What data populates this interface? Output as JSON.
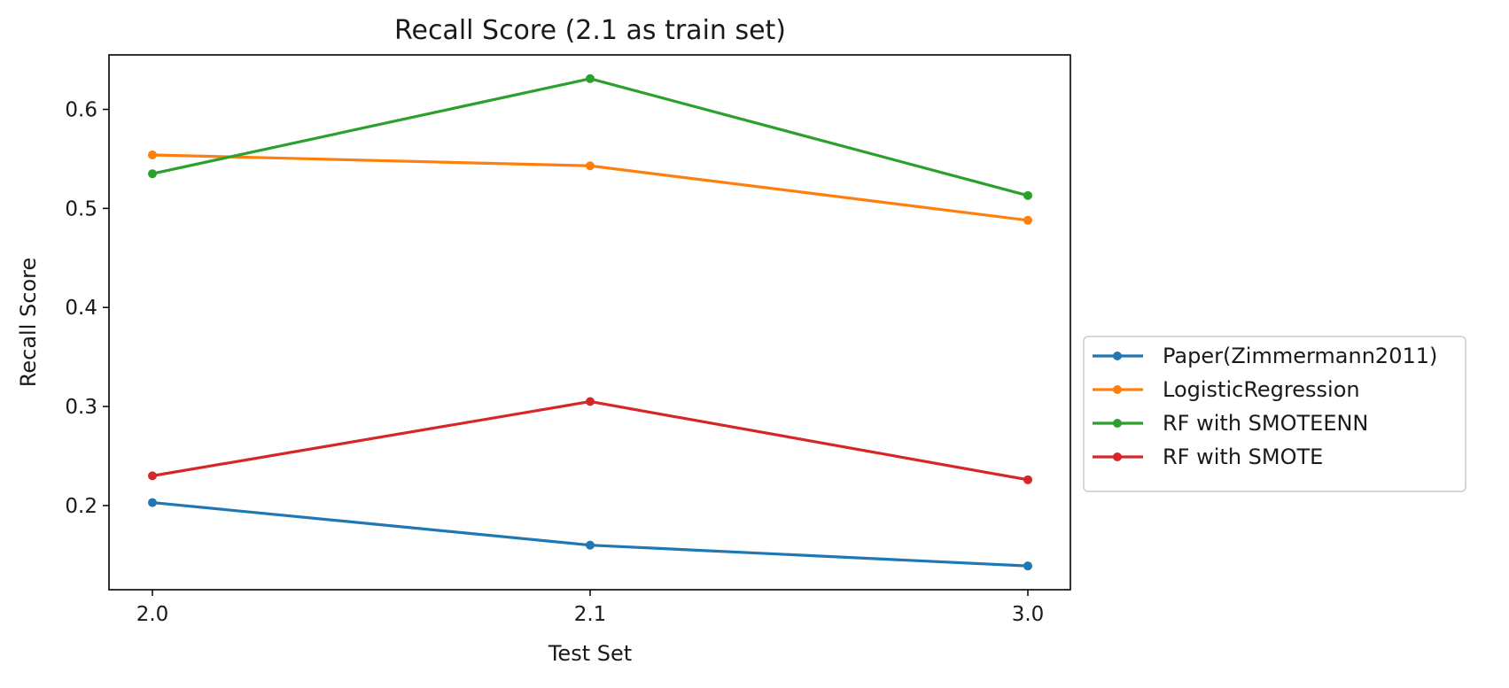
{
  "chart_data": {
    "type": "line",
    "title": "Recall Score (2.1 as train set)",
    "xlabel": "Test Set",
    "ylabel": "Recall Score",
    "categories": [
      "2.0",
      "2.1",
      "3.0"
    ],
    "ylim": [
      0.115,
      0.655
    ],
    "yticks": [
      0.2,
      0.3,
      0.4,
      0.5,
      0.6
    ],
    "ytick_labels": [
      "0.2",
      "0.3",
      "0.4",
      "0.5",
      "0.6"
    ],
    "grid": false,
    "legend_position": "center-right outside",
    "series": [
      {
        "name": "Paper(Zimmermann2011)",
        "color": "#1f77b4",
        "values": [
          0.203,
          0.16,
          0.139
        ]
      },
      {
        "name": "LogisticRegression",
        "color": "#ff7f0e",
        "values": [
          0.554,
          0.543,
          0.488
        ]
      },
      {
        "name": "RF with SMOTEENN",
        "color": "#2ca02c",
        "values": [
          0.535,
          0.631,
          0.513
        ]
      },
      {
        "name": "RF with SMOTE",
        "color": "#d62728",
        "values": [
          0.23,
          0.305,
          0.226
        ]
      }
    ]
  }
}
